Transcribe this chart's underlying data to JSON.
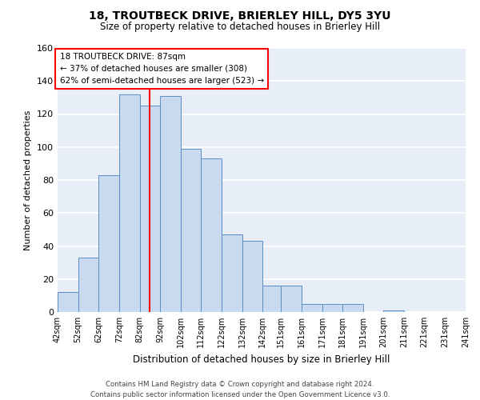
{
  "title": "18, TROUTBECK DRIVE, BRIERLEY HILL, DY5 3YU",
  "subtitle": "Size of property relative to detached houses in Brierley Hill",
  "xlabel": "Distribution of detached houses by size in Brierley Hill",
  "ylabel": "Number of detached properties",
  "bin_edges": [
    42,
    52,
    62,
    72,
    82,
    92,
    102,
    112,
    122,
    132,
    142,
    151,
    161,
    171,
    181,
    191,
    201,
    211,
    221,
    231,
    241
  ],
  "bar_heights": [
    12,
    33,
    83,
    132,
    125,
    131,
    99,
    93,
    47,
    43,
    16,
    16,
    5,
    5,
    5,
    0,
    1,
    0,
    0,
    0
  ],
  "bar_color": "#c9d9f0",
  "bar_edge_color": "#5b8ec4",
  "vline_x": 87,
  "vline_color": "red",
  "ylim": [
    0,
    160
  ],
  "yticks": [
    0,
    20,
    40,
    60,
    80,
    100,
    120,
    140,
    160
  ],
  "annotation_title": "18 TROUTBECK DRIVE: 87sqm",
  "annotation_line1": "← 37% of detached houses are smaller (308)",
  "annotation_line2": "62% of semi-detached houses are larger (523) →",
  "footer_line1": "Contains HM Land Registry data © Crown copyright and database right 2024.",
  "footer_line2": "Contains public sector information licensed under the Open Government Licence v3.0.",
  "background_color": "#e8eef8",
  "grid_color": "white",
  "tick_labels": [
    "42sqm",
    "52sqm",
    "62sqm",
    "72sqm",
    "82sqm",
    "92sqm",
    "102sqm",
    "112sqm",
    "122sqm",
    "132sqm",
    "142sqm",
    "151sqm",
    "161sqm",
    "171sqm",
    "181sqm",
    "191sqm",
    "201sqm",
    "211sqm",
    "221sqm",
    "231sqm",
    "241sqm"
  ]
}
